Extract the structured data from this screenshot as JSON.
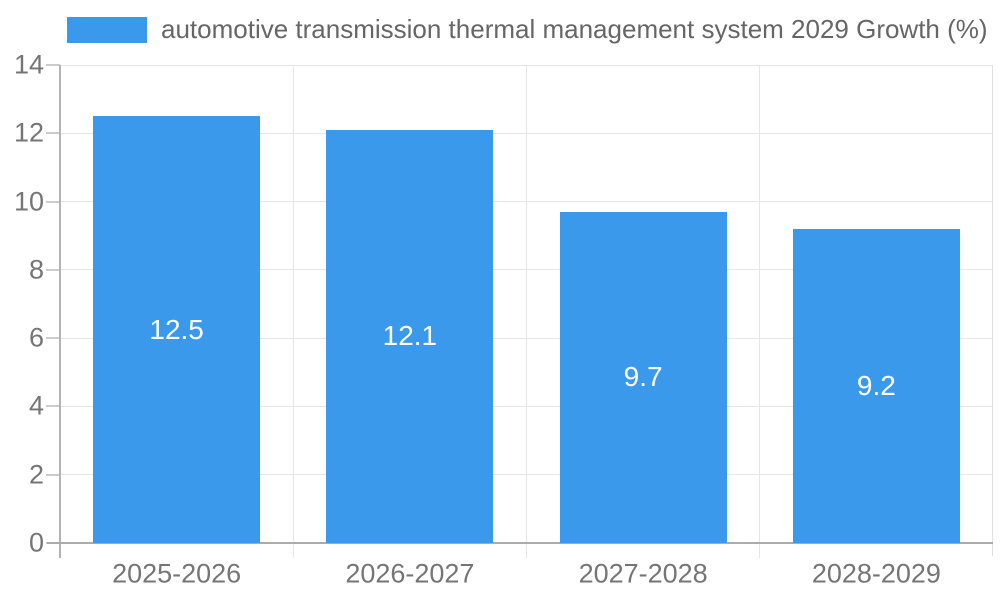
{
  "chart_data": {
    "type": "bar",
    "legend": "automotive transmission thermal management system 2029 Growth (%)",
    "categories": [
      "2025-2026",
      "2026-2027",
      "2027-2028",
      "2028-2029"
    ],
    "values": [
      12.5,
      12.1,
      9.7,
      9.2
    ],
    "value_labels": [
      "12.5",
      "12.1",
      "9.7",
      "9.2"
    ],
    "yticks": [
      0,
      2,
      4,
      6,
      8,
      10,
      12,
      14
    ],
    "ylim": [
      0,
      14
    ],
    "xlabel": "",
    "ylabel": "",
    "title": "",
    "grid": true,
    "legend_position": "top-left",
    "bar_color": "#3b99ec",
    "value_label_color": "#ffffff",
    "gridline_color": "#e6e6e6",
    "axis_line_color": "#ababab",
    "tick_label_color": "#757575",
    "legend_text_color": "#666666",
    "background_color": "#ffffff"
  }
}
